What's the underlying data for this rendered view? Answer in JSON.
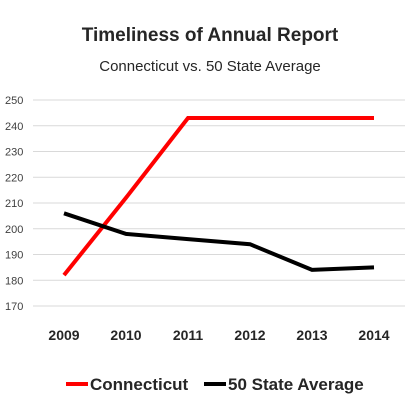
{
  "chart_data": {
    "type": "line",
    "title": "Timeliness of Annual Report",
    "subtitle": "Connecticut vs. 50 State Average",
    "xlabel": "",
    "ylabel": "",
    "categories": [
      "2009",
      "2010",
      "2011",
      "2012",
      "2013",
      "2014"
    ],
    "ylim": [
      170,
      250
    ],
    "yticks": [
      170,
      180,
      190,
      200,
      210,
      220,
      230,
      240,
      250
    ],
    "grid": true,
    "legend_position": "bottom",
    "series": [
      {
        "name": "Connecticut",
        "color": "#ff0000",
        "values": [
          182,
          212,
          243,
          243,
          243,
          243
        ]
      },
      {
        "name": "50 State Average",
        "color": "#000000",
        "values": [
          206,
          198,
          196,
          194,
          184,
          185
        ]
      }
    ]
  }
}
